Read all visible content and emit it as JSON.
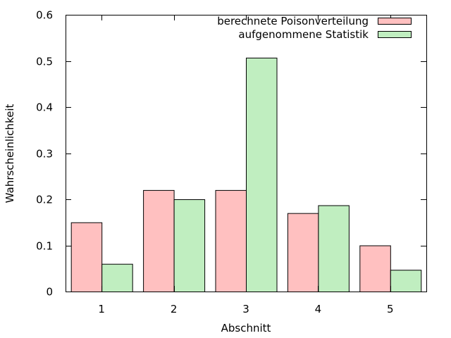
{
  "chart_data": {
    "type": "bar",
    "title": "",
    "xlabel": "Abschnitt",
    "ylabel": "Wahrscheinlichkeit",
    "categories": [
      "1",
      "2",
      "3",
      "4",
      "5"
    ],
    "ylim": [
      0,
      0.6
    ],
    "yticks": [
      "0",
      "0.1",
      "0.2",
      "0.3",
      "0.4",
      "0.5",
      "0.6"
    ],
    "legend_position": "top-right",
    "grid": false,
    "series": [
      {
        "name": "berechnete Poisonverteilung",
        "color": "#ffc0c0",
        "values": [
          0.15,
          0.22,
          0.22,
          0.17,
          0.1
        ]
      },
      {
        "name": "aufgenommene Statistik",
        "color": "#c0eec0",
        "values": [
          0.06,
          0.2,
          0.507,
          0.187,
          0.047
        ]
      }
    ]
  }
}
